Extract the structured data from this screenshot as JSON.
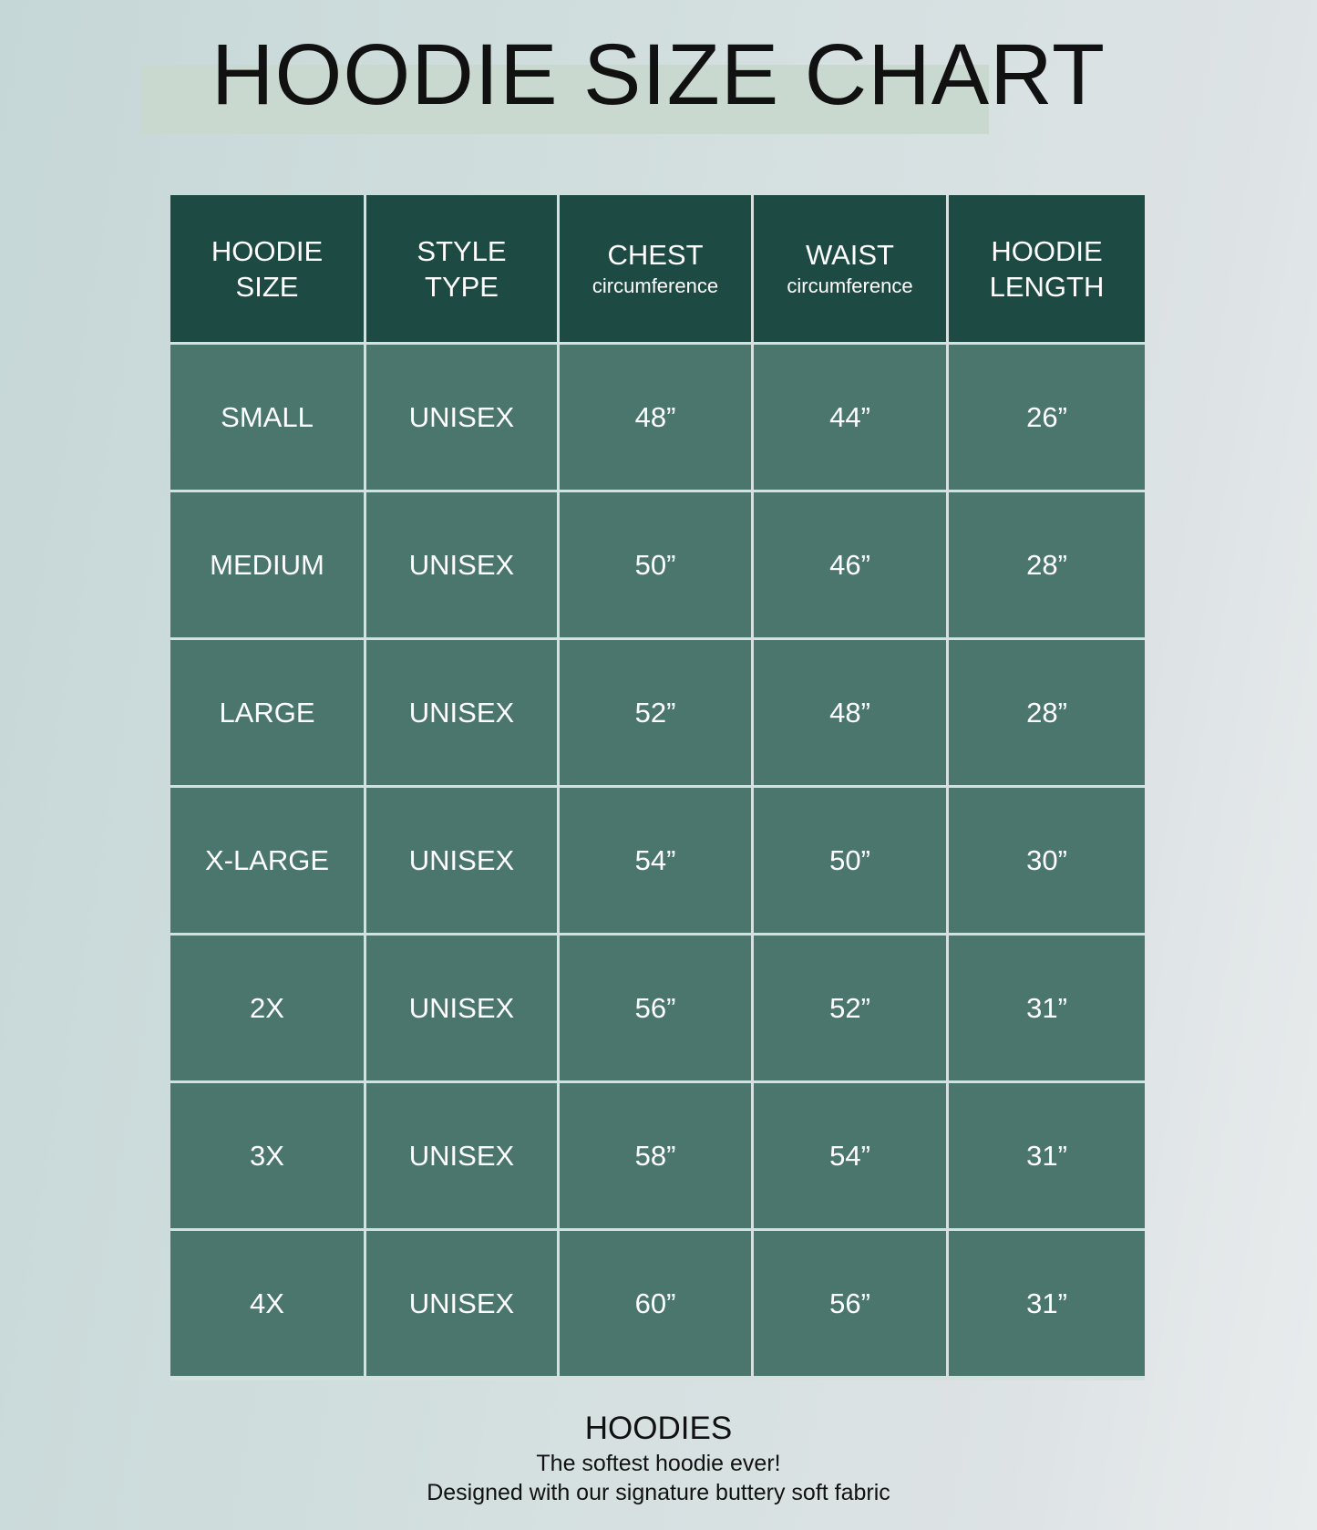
{
  "title": "HOODIE SIZE CHART",
  "headers": [
    {
      "line1": "HOODIE",
      "line2": "SIZE"
    },
    {
      "line1": "STYLE",
      "line2": "TYPE"
    },
    {
      "line1": "CHEST",
      "sub": "circumference"
    },
    {
      "line1": "WAIST",
      "sub": "circumference"
    },
    {
      "line1": "HOODIE",
      "line2": "LENGTH"
    }
  ],
  "rows": [
    [
      "SMALL",
      "UNISEX",
      "48”",
      "44”",
      "26”"
    ],
    [
      "MEDIUM",
      "UNISEX",
      "50”",
      "46”",
      "28”"
    ],
    [
      "LARGE",
      "UNISEX",
      "52”",
      "48”",
      "28”"
    ],
    [
      "X-LARGE",
      "UNISEX",
      "54”",
      "50”",
      "30”"
    ],
    [
      "2X",
      "UNISEX",
      "56”",
      "52”",
      "31”"
    ],
    [
      "3X",
      "UNISEX",
      "58”",
      "54”",
      "31”"
    ],
    [
      "4X",
      "UNISEX",
      "60”",
      "56”",
      "31”"
    ]
  ],
  "footer": {
    "heading": "HOODIES",
    "line1": "The softest hoodie ever!",
    "line2": "Designed with our signature buttery soft fabric"
  },
  "colors": {
    "header": "#1e4a44",
    "row": "#4b766e",
    "accent_band": "#c9d9cf"
  }
}
